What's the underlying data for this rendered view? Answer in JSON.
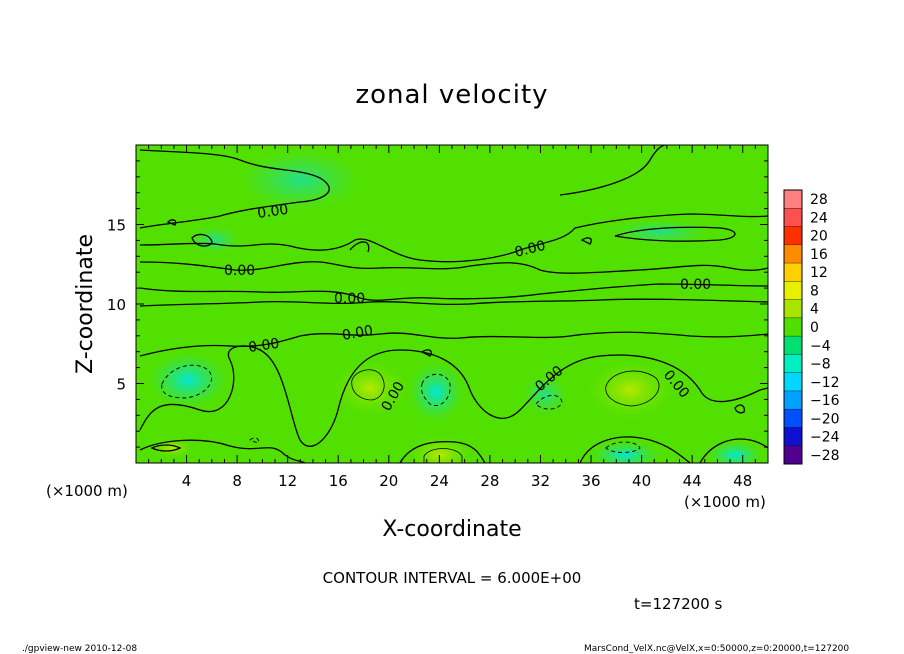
{
  "chart_data": {
    "type": "heatmap",
    "title": "zonal velocity",
    "xlabel": "X-coordinate",
    "ylabel": "Z-coordinate",
    "x_unit": "(×1000 m)",
    "y_unit": "(×1000 m)",
    "xlim": [
      0,
      50
    ],
    "ylim": [
      0,
      20
    ],
    "x_ticks": [
      "4",
      "8",
      "12",
      "16",
      "20",
      "24",
      "28",
      "32",
      "36",
      "40",
      "44",
      "48"
    ],
    "y_ticks": [
      "5",
      "10",
      "15"
    ],
    "colorbar": {
      "levels": [
        "28",
        "24",
        "20",
        "16",
        "12",
        "8",
        "4",
        "0",
        "−24",
        "−28"
      ],
      "all_levels": [
        "28",
        "24",
        "20",
        "16",
        "12",
        "8",
        "4",
        "0",
        "−4",
        "−8",
        "−12",
        "−16",
        "−20",
        "−24",
        "−28"
      ],
      "colors": [
        "#ff8080",
        "#ff5050",
        "#ff3000",
        "#ff8c00",
        "#ffd000",
        "#e8f000",
        "#a8e600",
        "#50e000",
        "#00e070",
        "#00f0c0",
        "#00d8ff",
        "#00a0ff",
        "#0050ff",
        "#1010d0",
        "#500090"
      ]
    },
    "contour_interval_text": "CONTOUR INTERVAL = 6.000E+00",
    "contour_labels": [
      "0.00",
      "0.00",
      "0.00",
      "0.00",
      "0.00",
      "0.00",
      "0.00",
      "0.00",
      "0.00",
      "0.00"
    ],
    "time_text": "t=127200 s",
    "footer_left": "./gpview-new  2010-12-08",
    "footer_right": "MarsCond_VelX.nc@VelX,x=0:50000,z=0:20000,t=127200"
  }
}
